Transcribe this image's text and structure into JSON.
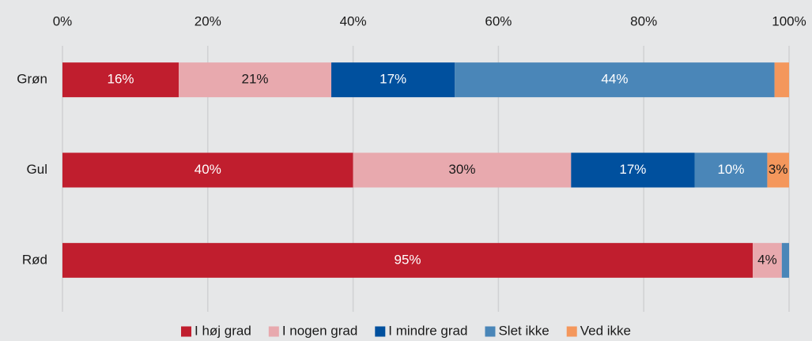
{
  "chart_data": {
    "type": "stacked-bar-horizontal",
    "categories": [
      "Grøn",
      "Gul",
      "Rød"
    ],
    "series": [
      {
        "name": "I høj grad",
        "color": "#c01e2e",
        "values": [
          16,
          40,
          95
        ],
        "value_labels": [
          "16%",
          "40%",
          "95%"
        ]
      },
      {
        "name": "I nogen grad",
        "color": "#e8a9ae",
        "values": [
          21,
          30,
          4
        ],
        "value_labels": [
          "21%",
          "30%",
          "4%"
        ]
      },
      {
        "name": "I mindre grad",
        "color": "#00509e",
        "values": [
          17,
          17,
          0
        ],
        "value_labels": [
          "17%",
          "17%",
          null
        ]
      },
      {
        "name": "Slet ikke",
        "color": "#4a86b8",
        "values": [
          44,
          10,
          1
        ],
        "value_labels": [
          "44%",
          "10%",
          null
        ]
      },
      {
        "name": "Ved ikke",
        "color": "#f4975c",
        "values": [
          2,
          3,
          0
        ],
        "value_labels": [
          null,
          "3%",
          null
        ]
      }
    ],
    "xlim": [
      0,
      100
    ],
    "xticks": [
      {
        "value": 0,
        "label": "0%"
      },
      {
        "value": 20,
        "label": "20%"
      },
      {
        "value": 40,
        "label": "40%"
      },
      {
        "value": 60,
        "label": "60%"
      },
      {
        "value": 80,
        "label": "80%"
      },
      {
        "value": 100,
        "label": "100%"
      }
    ],
    "grid": true,
    "legend": "bottom"
  }
}
